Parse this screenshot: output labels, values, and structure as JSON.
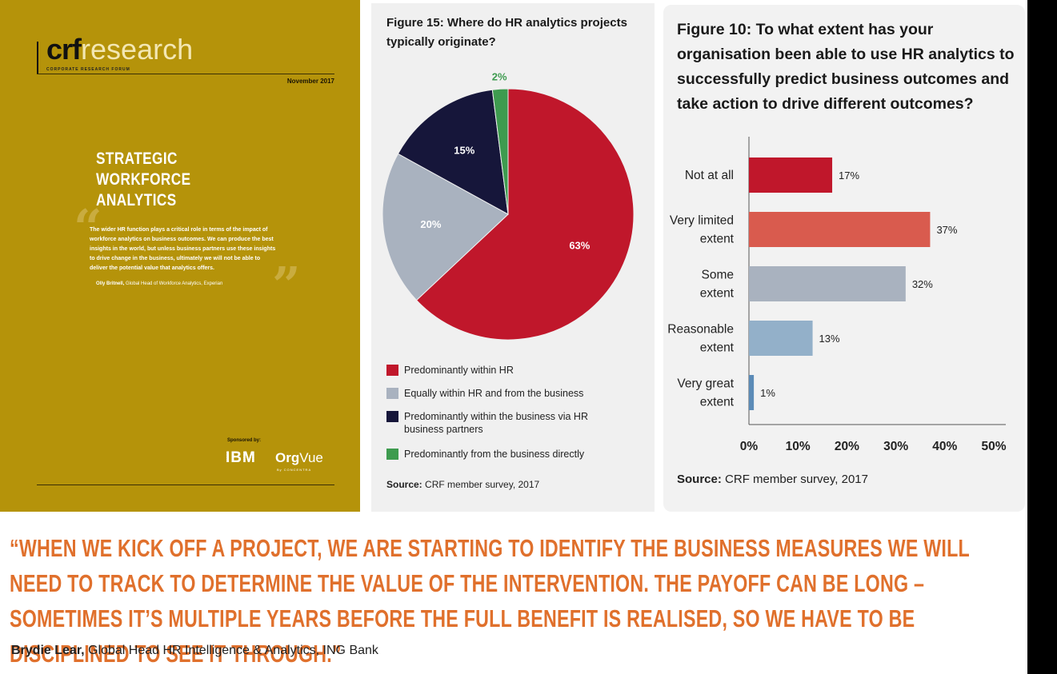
{
  "cover": {
    "logo_crf": "crf",
    "logo_research": "research",
    "logo_subtitle": "CORPORATE RESEARCH FORUM",
    "date": "November 2017",
    "title": "STRATEGIC WORKFORCE ANALYTICS",
    "quote": "The wider HR function plays a critical role in terms of the impact of workforce analytics on business outcomes. We can produce the best insights in the world, but unless business partners use these insights to drive change in the business, ultimately we will not be able to deliver the potential value that analytics offers.",
    "quote_author": "Olly Britnell,",
    "quote_role": "Global Head of Workforce Analytics, Experian",
    "sponsored_by": "Sponsored by:",
    "sponsor1": "IBM",
    "sponsor2_bold": "Org",
    "sponsor2_rest": "Vue",
    "sponsor2_sub": "By CONCENTRA"
  },
  "fig15": {
    "title_label": "Figure 15",
    "title_text": ": Where do HR analytics projects typically originate?",
    "source_label": "Source:",
    "source_text": "CRF member survey, 2017"
  },
  "fig10": {
    "title_label": "Figure 10",
    "title_text": ": To what extent has your organisation been able to use HR analytics to successfully predict business outcomes and take action to drive different outcomes?",
    "source_label": "Source:",
    "source_text": "CRF member survey, 2017"
  },
  "chart_data": [
    {
      "type": "pie",
      "title": "Figure 15: Where do HR analytics projects typically originate?",
      "slices": [
        {
          "label": "Predominantly within HR",
          "value": 63,
          "display": "63%",
          "color": "#c0172b"
        },
        {
          "label": "Equally within HR and from the business",
          "value": 20,
          "display": "20%",
          "color": "#a9b2bf"
        },
        {
          "label": "Predominantly within the business via HR business partners",
          "value": 15,
          "display": "15%",
          "color": "#16163a"
        },
        {
          "label": "Predominantly from the business directly",
          "value": 2,
          "display": "2%",
          "color": "#3e9b4f"
        }
      ],
      "legend_placement": "bottom"
    },
    {
      "type": "bar",
      "orientation": "horizontal",
      "title": "Figure 10: To what extent has your organisation been able to use HR analytics to successfully predict business outcomes and take action to drive different outcomes?",
      "categories": [
        "Not at all",
        "Very limited extent",
        "Some extent",
        "Reasonable extent",
        "Very great extent"
      ],
      "category_lines": [
        [
          "Not at all"
        ],
        [
          "Very limited",
          "extent"
        ],
        [
          "Some",
          "extent"
        ],
        [
          "Reasonable",
          "extent"
        ],
        [
          "Very great",
          "extent"
        ]
      ],
      "values": [
        17,
        37,
        32,
        13,
        1
      ],
      "value_labels": [
        "17%",
        "37%",
        "32%",
        "13%",
        "1%"
      ],
      "colors": [
        "#c0172b",
        "#d95b4e",
        "#a9b2bf",
        "#93b0c9",
        "#5b8bb7"
      ],
      "xlim": [
        0,
        50
      ],
      "xticks": [
        "0%",
        "10%",
        "20%",
        "30%",
        "40%",
        "50%"
      ],
      "xtick_values": [
        0,
        10,
        20,
        30,
        40,
        50
      ],
      "grid": false
    }
  ],
  "quote": {
    "text": "“WHEN WE KICK OFF A PROJECT, WE ARE STARTING TO IDENTIFY THE BUSINESS MEASURES WE WILL NEED TO TRACK TO DETERMINE THE VALUE OF THE INTERVENTION. THE PAYOFF CAN BE LONG – SOMETIMES IT’S MULTIPLE YEARS BEFORE THE FULL BENEFIT IS REALISED, SO WE HAVE TO BE DISCIPLINED TO SEE IT THROUGH.”",
    "author": "Brydie Lear,",
    "role": "Global Head HR Intelligence & Analytics, ING Bank"
  }
}
